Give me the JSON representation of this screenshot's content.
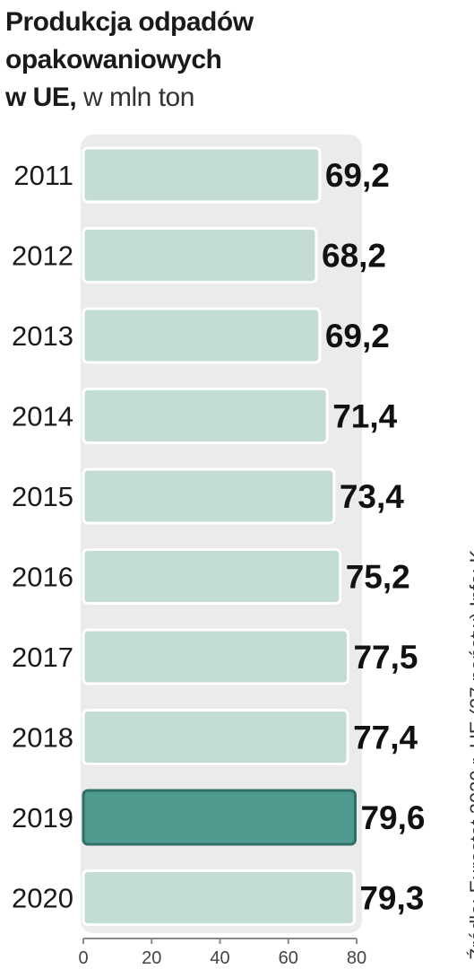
{
  "title": {
    "line1": "Produkcja odpadów",
    "line2": "opakowaniowych",
    "line3_bold": "w UE,",
    "line3_normal": " w mln ton"
  },
  "source": "Źródło: Eurostat 2020 r. UE (27 państw) Info: K",
  "colors": {
    "bar": "#c4dcd6",
    "bar_highlight": "#4e9a8e",
    "bar_border": "#8aa9a1",
    "panel": "#ebebeb"
  },
  "chart_data": {
    "type": "bar",
    "orientation": "horizontal",
    "categories": [
      "2011",
      "2012",
      "2013",
      "2014",
      "2015",
      "2016",
      "2017",
      "2018",
      "2019",
      "2020"
    ],
    "values": [
      69.2,
      68.2,
      69.2,
      71.4,
      73.4,
      75.2,
      77.5,
      77.4,
      79.6,
      79.3
    ],
    "value_labels": [
      "69,2",
      "68,2",
      "69,2",
      "71,4",
      "73,4",
      "75,2",
      "77,5",
      "77,4",
      "79,6",
      "79,3"
    ],
    "highlight": "2019",
    "xlim": [
      0,
      80
    ],
    "xticks": [
      0,
      20,
      40,
      60,
      80
    ],
    "grid": false
  }
}
